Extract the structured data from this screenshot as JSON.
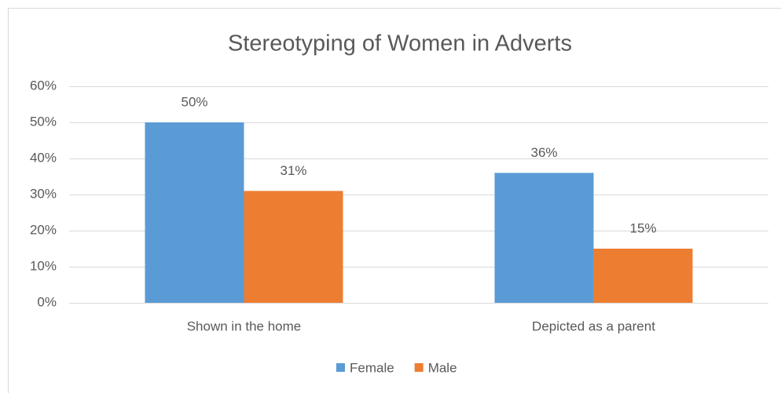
{
  "chart_data": {
    "type": "bar",
    "title": "Stereotyping of Women in Adverts",
    "categories": [
      "Shown in the home",
      "Depicted as a parent"
    ],
    "series": [
      {
        "name": "Female",
        "color": "#5b9bd5",
        "values": [
          50,
          36
        ],
        "value_labels": [
          "50%",
          "36%"
        ]
      },
      {
        "name": "Male",
        "color": "#ed7d31",
        "values": [
          31,
          15
        ],
        "value_labels": [
          "31%",
          "15%"
        ]
      }
    ],
    "ylim": [
      0,
      60
    ],
    "yticks": [
      {
        "value": 0,
        "label": "0%"
      },
      {
        "value": 10,
        "label": "10%"
      },
      {
        "value": 20,
        "label": "20%"
      },
      {
        "value": 30,
        "label": "30%"
      },
      {
        "value": 40,
        "label": "40%"
      },
      {
        "value": 50,
        "label": "50%"
      },
      {
        "value": 60,
        "label": "60%"
      }
    ],
    "grid": true,
    "legend": "bottom"
  }
}
